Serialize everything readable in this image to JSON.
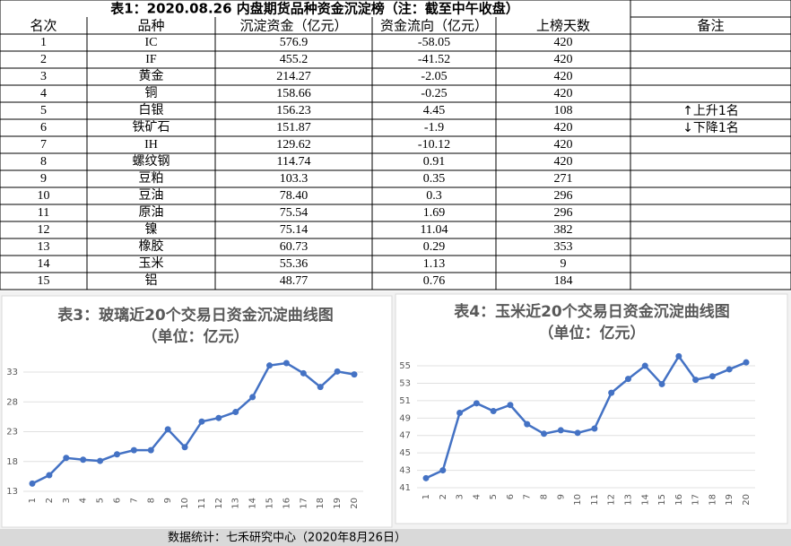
{
  "table": {
    "title": "表1：2020.08.26 内盘期货品种资金沉淀榜（注：截至中午收盘）",
    "headers": [
      "名次",
      "品种",
      "沉淀资金（亿元）",
      "资金流向（亿元）",
      "上榜天数",
      "备注"
    ],
    "rows": [
      [
        "1",
        "IC",
        "576.9",
        "-58.05",
        "420",
        ""
      ],
      [
        "2",
        "IF",
        "455.2",
        "-41.52",
        "420",
        ""
      ],
      [
        "3",
        "黄金",
        "214.27",
        "-2.05",
        "420",
        ""
      ],
      [
        "4",
        "铜",
        "158.66",
        "-0.25",
        "420",
        ""
      ],
      [
        "5",
        "白银",
        "156.23",
        "4.45",
        "108",
        "↑上升1名"
      ],
      [
        "6",
        "铁矿石",
        "151.87",
        "-1.9",
        "420",
        "↓下降1名"
      ],
      [
        "7",
        "IH",
        "129.62",
        "-10.12",
        "420",
        ""
      ],
      [
        "8",
        "螺纹钢",
        "114.74",
        "0.91",
        "420",
        ""
      ],
      [
        "9",
        "豆粕",
        "103.3",
        "0.35",
        "271",
        ""
      ],
      [
        "10",
        "豆油",
        "78.40",
        "0.3",
        "296",
        ""
      ],
      [
        "11",
        "原油",
        "75.54",
        "1.69",
        "296",
        ""
      ],
      [
        "12",
        "镍",
        "75.14",
        "11.04",
        "382",
        ""
      ],
      [
        "13",
        "橡胶",
        "60.73",
        "0.29",
        "353",
        ""
      ],
      [
        "14",
        "玉米",
        "55.36",
        "1.13",
        "9",
        ""
      ],
      [
        "15",
        "铝",
        "48.77",
        "0.76",
        "184",
        ""
      ]
    ]
  },
  "chart_data": [
    {
      "type": "line",
      "title": "表3：玻璃近20个交易日资金沉淀曲线图",
      "subtitle": "（单位：亿元）",
      "categories": [
        "1",
        "2",
        "3",
        "4",
        "5",
        "6",
        "7",
        "8",
        "9",
        "10",
        "11",
        "12",
        "13",
        "14",
        "15",
        "16",
        "17",
        "18",
        "19",
        "20"
      ],
      "values": [
        14.3,
        15.7,
        18.6,
        18.3,
        18.1,
        19.2,
        19.9,
        19.9,
        23.4,
        20.4,
        24.7,
        25.3,
        26.3,
        28.8,
        34.1,
        34.5,
        32.8,
        30.5,
        33.1,
        32.6
      ],
      "color": "#4472c4",
      "ylim": [
        13,
        35
      ],
      "yticks": [
        13,
        18,
        23,
        28,
        33
      ],
      "grid": true
    },
    {
      "type": "line",
      "title": "表4：玉米近20个交易日资金沉淀曲线图",
      "subtitle": "（单位：亿元）",
      "categories": [
        "1",
        "2",
        "3",
        "4",
        "5",
        "6",
        "7",
        "8",
        "9",
        "10",
        "11",
        "12",
        "13",
        "14",
        "15",
        "16",
        "17",
        "18",
        "19",
        "20"
      ],
      "values": [
        42.1,
        43,
        49.6,
        50.7,
        49.8,
        50.5,
        48.3,
        47.2,
        47.6,
        47.3,
        47.8,
        51.9,
        53.5,
        55,
        52.9,
        56.1,
        53.4,
        53.8,
        54.6,
        55.4
      ],
      "color": "#4472c4",
      "ylim": [
        41,
        57
      ],
      "yticks": [
        41,
        43,
        45,
        47,
        49,
        51,
        53,
        55
      ],
      "grid": true
    }
  ],
  "footer": "数据统计：七禾研究中心（2020年8月26日）"
}
